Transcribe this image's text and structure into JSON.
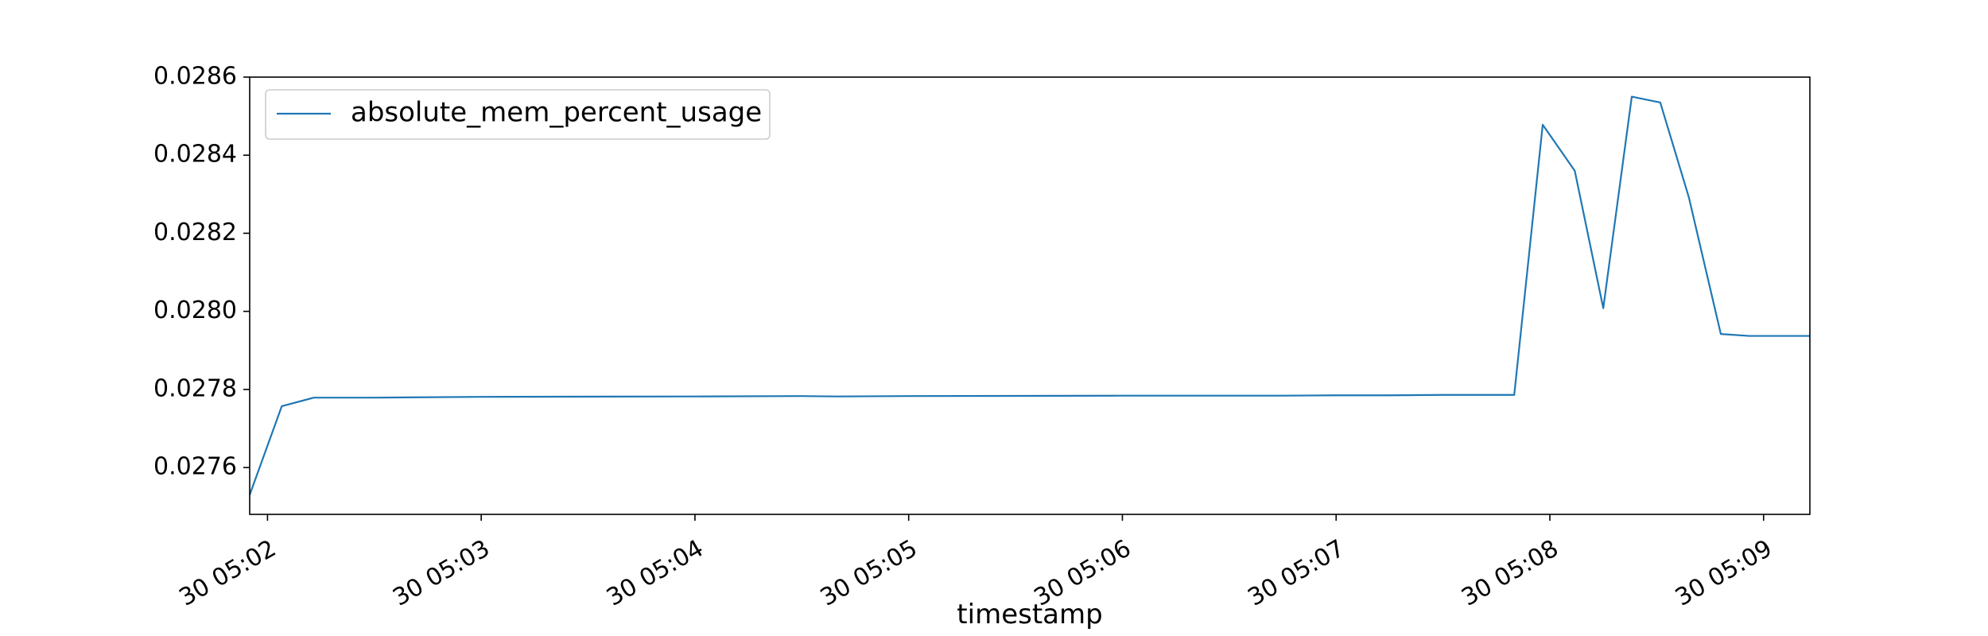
{
  "chart_data": {
    "type": "line",
    "xlabel": "timestamp",
    "ylabel": "",
    "xlim": [
      "30 05:01:55",
      "30 05:09:13"
    ],
    "ylim": [
      0.02748,
      0.0286
    ],
    "x_ticks": [
      {
        "t": "30 05:02:00",
        "label": "30 05:02"
      },
      {
        "t": "30 05:03:00",
        "label": "30 05:03"
      },
      {
        "t": "30 05:04:00",
        "label": "30 05:04"
      },
      {
        "t": "30 05:05:00",
        "label": "30 05:05"
      },
      {
        "t": "30 05:06:00",
        "label": "30 05:06"
      },
      {
        "t": "30 05:07:00",
        "label": "30 05:07"
      },
      {
        "t": "30 05:08:00",
        "label": "30 05:08"
      },
      {
        "t": "30 05:09:00",
        "label": "30 05:09"
      }
    ],
    "y_ticks": [
      {
        "v": 0.0276,
        "label": "0.0276"
      },
      {
        "v": 0.0278,
        "label": "0.0278"
      },
      {
        "v": 0.028,
        "label": "0.0280"
      },
      {
        "v": 0.0282,
        "label": "0.0282"
      },
      {
        "v": 0.0284,
        "label": "0.0284"
      },
      {
        "v": 0.0286,
        "label": "0.0286"
      }
    ],
    "legend": {
      "position": "top-left"
    },
    "grid": false,
    "colors": {
      "series": "#1f77b4",
      "axes": "#000000"
    },
    "series": [
      {
        "name": "absolute_mem_percent_usage",
        "points": [
          [
            "30 05:01:55",
            0.02753
          ],
          [
            "30 05:02:04",
            0.027757
          ],
          [
            "30 05:02:13",
            0.027779
          ],
          [
            "30 05:02:30",
            0.027779
          ],
          [
            "30 05:03:00",
            0.027781
          ],
          [
            "30 05:04:00",
            0.027782
          ],
          [
            "30 05:04:30",
            0.027783
          ],
          [
            "30 05:04:40",
            0.027782
          ],
          [
            "30 05:05:00",
            0.027783
          ],
          [
            "30 05:06:00",
            0.027784
          ],
          [
            "30 05:06:45",
            0.027784
          ],
          [
            "30 05:07:00",
            0.027785
          ],
          [
            "30 05:07:15",
            0.027785
          ],
          [
            "30 05:07:30",
            0.027786
          ],
          [
            "30 05:07:50",
            0.027786
          ],
          [
            "30 05:07:58",
            0.028478
          ],
          [
            "30 05:08:07",
            0.02836
          ],
          [
            "30 05:08:15",
            0.028008
          ],
          [
            "30 05:08:23",
            0.02855
          ],
          [
            "30 05:08:31",
            0.028535
          ],
          [
            "30 05:08:39",
            0.028293
          ],
          [
            "30 05:08:48",
            0.027942
          ],
          [
            "30 05:08:56",
            0.027937
          ],
          [
            "30 05:09:13",
            0.027937
          ]
        ]
      }
    ]
  }
}
